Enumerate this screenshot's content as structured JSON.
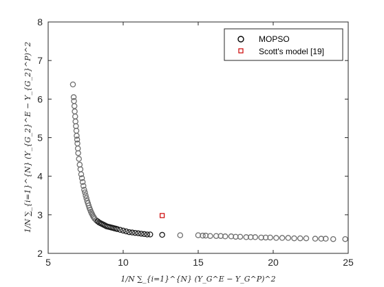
{
  "chart_data": {
    "type": "scatter",
    "title": "",
    "xlabel": "1/N ∑_{i=1}^{N} (Y_G^E − Y_G^P)^2",
    "ylabel": "1/N ∑_{i=1}^{N} (Y_{G_2}^E − Y_{G_2}^P)^2",
    "xlim": [
      5,
      25
    ],
    "ylim": [
      2,
      8
    ],
    "xticks": [
      "5",
      "10",
      "15",
      "20",
      "25"
    ],
    "yticks": [
      "2",
      "3",
      "4",
      "5",
      "6",
      "7",
      "8"
    ],
    "grid": false,
    "legend_position": "top-right",
    "series": [
      {
        "name": "MOPSO",
        "marker": "circle",
        "color": "#000000",
        "x": [
          6.65,
          6.7,
          6.72,
          6.75,
          6.77,
          6.8,
          6.82,
          6.85,
          6.88,
          6.9,
          6.93,
          6.95,
          6.98,
          7.0,
          7.05,
          7.1,
          7.15,
          7.2,
          7.25,
          7.3,
          7.35,
          7.4,
          7.45,
          7.5,
          7.55,
          7.6,
          7.65,
          7.7,
          7.75,
          7.8,
          7.85,
          7.9,
          7.95,
          8.0,
          8.05,
          8.1,
          8.2,
          8.3,
          8.4,
          8.5,
          8.6,
          8.7,
          8.8,
          8.9,
          9.0,
          9.1,
          9.2,
          9.3,
          9.4,
          9.5,
          9.6,
          9.8,
          10.0,
          10.2,
          10.4,
          10.6,
          10.8,
          11.0,
          11.2,
          11.4,
          11.6,
          11.8,
          12.6,
          13.8,
          15.0,
          15.3,
          15.5,
          15.8,
          16.2,
          16.5,
          16.8,
          17.2,
          17.5,
          17.8,
          18.2,
          18.5,
          18.8,
          19.2,
          19.5,
          19.8,
          20.2,
          20.6,
          21.0,
          21.4,
          21.8,
          22.2,
          22.8,
          23.2,
          23.5,
          24.0,
          24.8
        ],
        "y": [
          6.38,
          6.05,
          5.95,
          5.82,
          5.68,
          5.55,
          5.42,
          5.3,
          5.18,
          5.05,
          4.95,
          4.85,
          4.72,
          4.6,
          4.45,
          4.3,
          4.18,
          4.05,
          3.95,
          3.85,
          3.75,
          3.65,
          3.58,
          3.5,
          3.43,
          3.36,
          3.3,
          3.24,
          3.18,
          3.13,
          3.08,
          3.04,
          3.0,
          2.96,
          2.93,
          2.9,
          2.86,
          2.83,
          2.8,
          2.78,
          2.76,
          2.74,
          2.72,
          2.7,
          2.69,
          2.68,
          2.67,
          2.66,
          2.65,
          2.64,
          2.63,
          2.61,
          2.59,
          2.57,
          2.55,
          2.54,
          2.53,
          2.52,
          2.51,
          2.5,
          2.49,
          2.49,
          2.48,
          2.47,
          2.47,
          2.46,
          2.46,
          2.45,
          2.45,
          2.45,
          2.44,
          2.44,
          2.43,
          2.43,
          2.42,
          2.42,
          2.42,
          2.41,
          2.41,
          2.41,
          2.4,
          2.4,
          2.4,
          2.39,
          2.39,
          2.39,
          2.38,
          2.38,
          2.38,
          2.37,
          2.37
        ]
      },
      {
        "name": "Scott's model [19]",
        "marker": "square",
        "color": "#cc0000",
        "x": [
          12.6
        ],
        "y": [
          2.98
        ]
      }
    ]
  }
}
